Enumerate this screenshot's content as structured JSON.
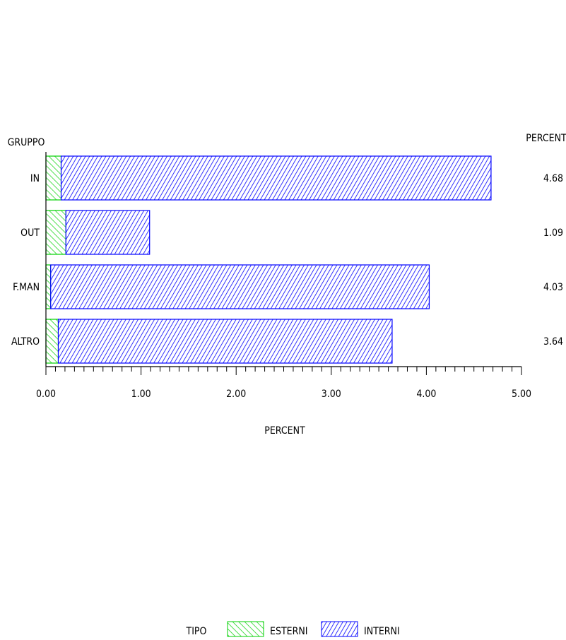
{
  "chart_data": {
    "type": "bar",
    "orientation": "horizontal",
    "stacked": true,
    "title": "",
    "category_axis_label": "GRUPPO",
    "xlabel": "PERCENT",
    "total_column_label": "PERCENT",
    "categories": [
      "IN",
      "OUT",
      "F.MAN",
      "ALTRO"
    ],
    "series": [
      {
        "name": "ESTERNI",
        "values": [
          0.16,
          0.21,
          0.05,
          0.13
        ],
        "color": "#00d000",
        "pattern": "diagonal-backslash"
      },
      {
        "name": "INTERNI",
        "values": [
          4.52,
          0.88,
          3.98,
          3.51
        ],
        "color": "#0000ff",
        "pattern": "diagonal-slash"
      }
    ],
    "totals": [
      "4.68",
      "1.09",
      "4.03",
      "3.64"
    ],
    "xlim": [
      0,
      5
    ],
    "x_ticks": [
      "0.00",
      "1.00",
      "2.00",
      "3.00",
      "4.00",
      "5.00"
    ],
    "grid": false,
    "legend": {
      "title": "TIPO",
      "placement": "bottom"
    }
  }
}
